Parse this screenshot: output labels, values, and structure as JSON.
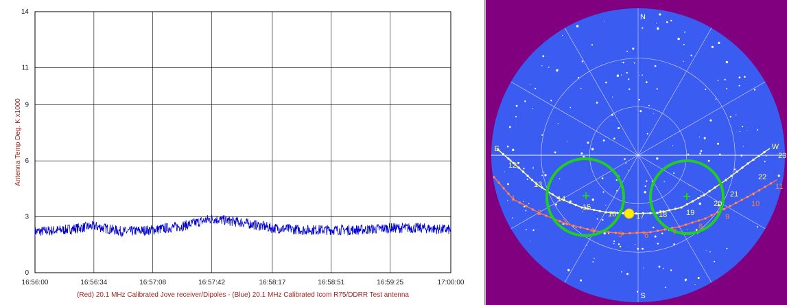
{
  "chart_data": {
    "type": "line",
    "title": "",
    "ylabel": "Antenna Temp Deg. K x1000",
    "caption": "(Red) 20.1 MHz Calibrated Jove receiver/Dipoles - (Blue) 20.1 MHz Calibrated Icom R75/DDRR Test antenna",
    "ylim": [
      0,
      14
    ],
    "y_ticks": [
      "0",
      "3",
      "6",
      "9",
      "11",
      "14"
    ],
    "x_ticks": [
      "16:56:00",
      "16:56:34",
      "16:57:08",
      "16:57:42",
      "16:58:17",
      "16:58:51",
      "16:59:25",
      "17:00:00"
    ],
    "xlim": [
      "16:56:00",
      "17:00:00"
    ],
    "grid": true,
    "series": [
      {
        "name": "(Blue) 20.1 MHz Calibrated Icom R75/DDRR Test antenna",
        "color": "#0000cc",
        "x": [
          "16:56:00",
          "16:56:17",
          "16:56:34",
          "16:56:51",
          "16:57:08",
          "16:57:25",
          "16:57:42",
          "16:57:59",
          "16:58:17",
          "16:58:34",
          "16:58:51",
          "16:59:08",
          "16:59:25",
          "16:59:42",
          "17:00:00"
        ],
        "values": [
          2.2,
          2.3,
          2.5,
          2.2,
          2.3,
          2.5,
          2.9,
          2.7,
          2.4,
          2.3,
          2.3,
          2.3,
          2.4,
          2.4,
          2.3
        ]
      }
    ]
  },
  "sky": {
    "background_color": "#800080",
    "disc_color": "#3b5cf0",
    "labels": {
      "north": "N",
      "south": "S",
      "east": "E",
      "west": "W"
    },
    "yellow_hours": [
      "12",
      "13",
      "14",
      "15",
      "16",
      "17",
      "18",
      "19",
      "20",
      "21",
      "22",
      "23"
    ],
    "red_hours": [
      "1",
      "2",
      "3",
      "4",
      "5",
      "6",
      "7",
      "8",
      "9",
      "10",
      "11"
    ]
  }
}
